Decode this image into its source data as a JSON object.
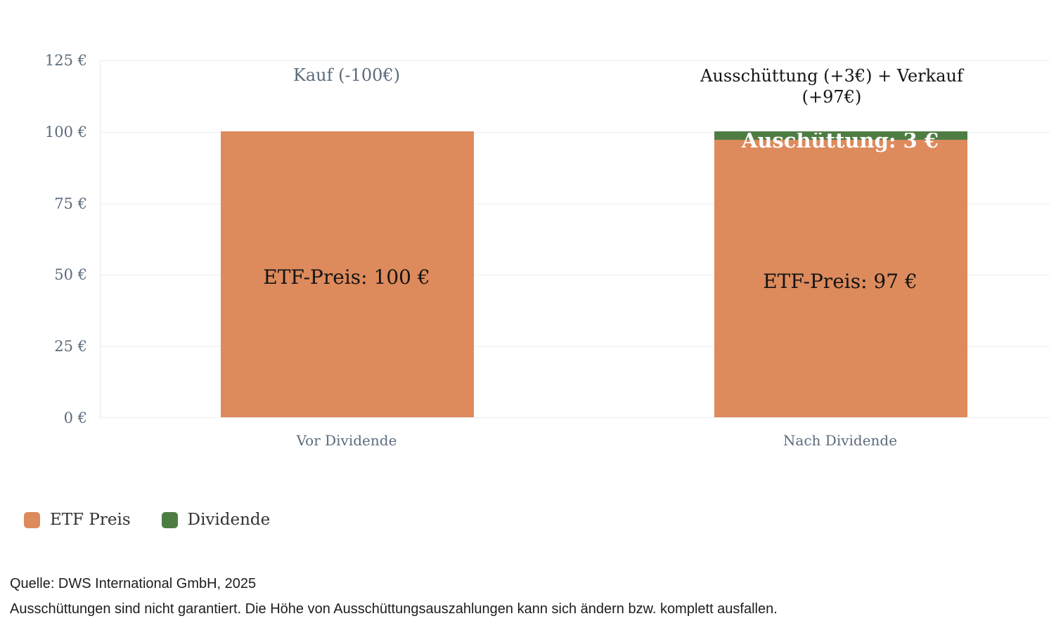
{
  "chart_data": {
    "type": "bar",
    "stacked": true,
    "categories": [
      "Vor Dividende",
      "Nach Dividende"
    ],
    "series": [
      {
        "name": "ETF Preis",
        "color": "#DD8A5C",
        "values": [
          100,
          97
        ]
      },
      {
        "name": "Dividende",
        "color": "#4E7D44",
        "values": [
          0,
          3
        ]
      }
    ],
    "ylim": [
      0,
      125
    ],
    "y_ticks": [
      "125 €",
      "100 €",
      "75 €",
      "50 €",
      "25 €",
      "0 €"
    ],
    "grid": true,
    "legend_position": "bottom-left",
    "annotations": [
      {
        "text": "Kauf (-100€)",
        "color": "#5B6B7C",
        "anchor": "Vor Dividende"
      },
      {
        "text": "Ausschüttung (+3€) + Verkauf (+97€)",
        "color": "#141414",
        "anchor": "Nach Dividende"
      }
    ],
    "bar_labels": [
      {
        "text": "ETF-Preis: 100 €",
        "bar": "Vor Dividende",
        "color": "#141414"
      },
      {
        "text": "ETF-Preis: 97 €",
        "bar": "Nach Dividende",
        "color": "#141414"
      },
      {
        "text": "Auschüttung: 3 €",
        "bar": "Nach Dividende",
        "color": "#FFFFFF"
      }
    ]
  },
  "legend": {
    "items": [
      {
        "label": "ETF Preis",
        "color": "#DD8A5C"
      },
      {
        "label": "Dividende",
        "color": "#4E7D44"
      }
    ]
  },
  "footer": {
    "source": "Quelle: DWS International GmbH, 2025",
    "disclaimer": "Ausschüttungen sind nicht garantiert. Die Höhe von Ausschüttungsauszahlungen kann sich ändern bzw. komplett ausfallen."
  }
}
